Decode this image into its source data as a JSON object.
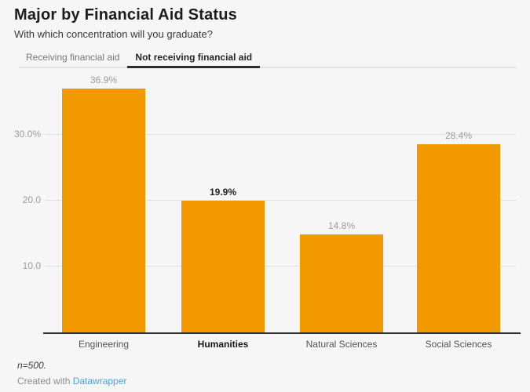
{
  "header": {
    "title": "Major by Financial Aid Status",
    "subtitle": "With which concentration will you graduate?"
  },
  "tabs": [
    {
      "label": "Receiving financial aid",
      "active": false
    },
    {
      "label": "Not receiving financial aid",
      "active": true
    }
  ],
  "chart_data": {
    "type": "bar",
    "title": "Major by Financial Aid Status",
    "subtitle": "With which concentration will you graduate?",
    "active_series": "Not receiving financial aid",
    "categories": [
      "Engineering",
      "Humanities",
      "Natural Sciences",
      "Social Sciences"
    ],
    "values": [
      36.9,
      19.9,
      14.8,
      28.4
    ],
    "value_labels": [
      "36.9%",
      "19.9%",
      "14.8%",
      "28.4%"
    ],
    "highlighted_index": 1,
    "highlighted_category": "Humanities",
    "y_ticks": [
      "30.0%",
      "20.0",
      "10.0"
    ],
    "y_tick_values": [
      30,
      20,
      10
    ],
    "ylim": [
      0,
      40
    ],
    "grid": true,
    "legend": "none",
    "bar_color": "#f29900"
  },
  "footer": {
    "note": "n=500.",
    "attribution_prefix": "Created with ",
    "attribution_link": "Datawrapper"
  },
  "colors": {
    "background": "#f6f6f6",
    "bar": "#f29900",
    "gridline": "#e1e1e1",
    "baseline": "#2d2d2d",
    "value_label": "#9c9c9c",
    "value_label_highlight": "#232323",
    "axis_tick_label": "#9c9c9c",
    "category_label": "#525252",
    "category_label_highlight": "#161616",
    "tab_inactive": "#777777",
    "tab_active": "#242424",
    "link": "#4aa2d9"
  }
}
